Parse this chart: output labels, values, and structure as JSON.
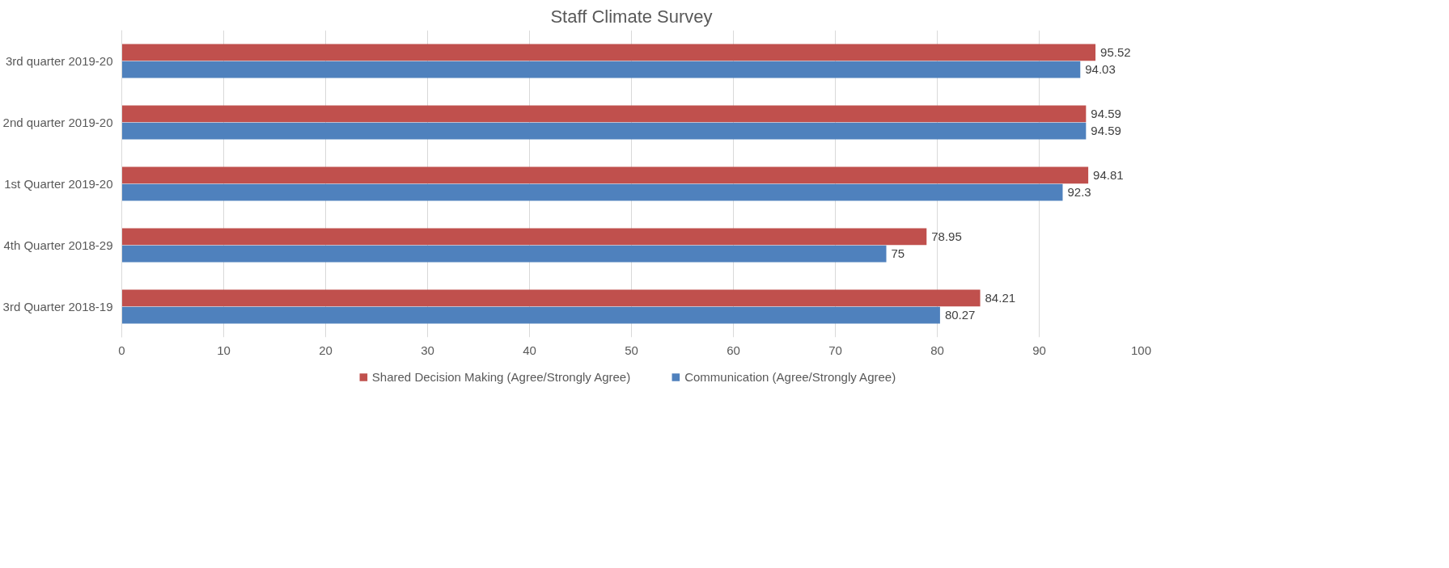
{
  "chart_data": {
    "type": "bar",
    "orientation": "horizontal",
    "title": "Staff Climate Survey",
    "categories": [
      "3rd quarter 2019-20",
      "2nd quarter 2019-20",
      "1st Quarter 2019-20",
      "4th Quarter 2018-29",
      "3rd Quarter 2018-19"
    ],
    "series": [
      {
        "name": "Shared Decision Making (Agree/Strongly Agree)",
        "color": "#c0504d",
        "values": [
          95.52,
          94.59,
          94.81,
          78.95,
          84.21
        ]
      },
      {
        "name": "Communication (Agree/Strongly Agree)",
        "color": "#4f81bd",
        "values": [
          94.03,
          94.59,
          92.3,
          75,
          80.27
        ]
      }
    ],
    "xlim": [
      0,
      100
    ],
    "xticks": [
      0,
      10,
      20,
      30,
      40,
      50,
      60,
      70,
      80,
      90,
      100
    ],
    "grid": "x",
    "legend": "bottom",
    "data_labels": true
  }
}
